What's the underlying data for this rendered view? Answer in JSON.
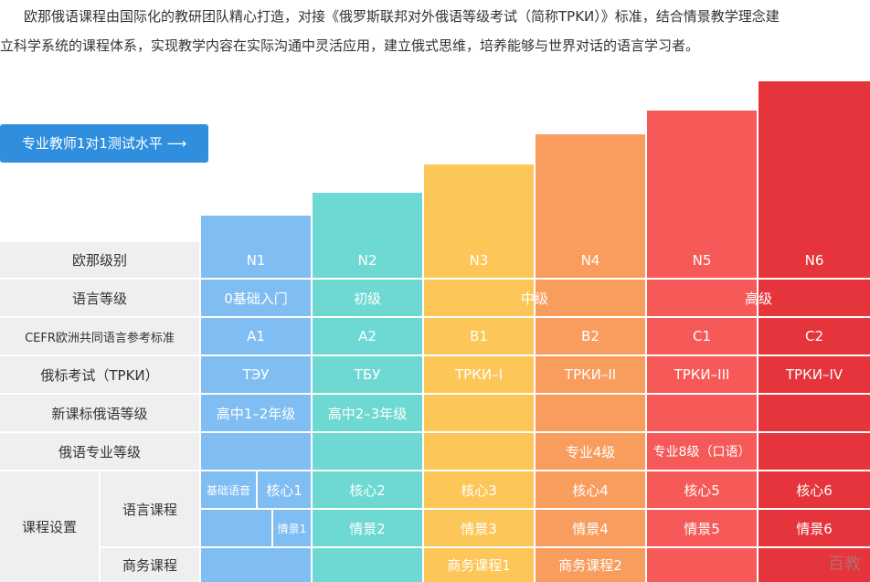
{
  "intro": {
    "line1": "欧那俄语课程由国际化的教研团队精心打造，对接《俄罗斯联邦对外俄语等级考试（简称TPKИ）》标准，结合情景教学理念建",
    "line2": "立科学系统的课程体系，实现教学内容在实际沟通中灵活应用，建立俄式思维，培养能够与世界对话的语言学习者。"
  },
  "button": {
    "label": "专业教师1对1测试水平 ⟶"
  },
  "rows": {
    "level": "欧那级别",
    "grade": "语言等级",
    "cefr": "CEFR欧洲共同语言参考标准",
    "trki": "俄标考试（TPKИ）",
    "newcurr": "新课标俄语等级",
    "major": "俄语专业等级",
    "course": "课程设置",
    "language_course": "语言课程",
    "business_course": "商务课程"
  },
  "levels": [
    "N1",
    "N2",
    "N3",
    "N4",
    "N5",
    "N6"
  ],
  "grades": {
    "n1": "0基础入门",
    "n2": "初级",
    "n34": "中级",
    "n56": "高级"
  },
  "cefr": [
    "A1",
    "A2",
    "B1",
    "B2",
    "C1",
    "C2"
  ],
  "trki": [
    "ТЭУ",
    "ТБУ",
    "ТРКИ–I",
    "ТРКИ–II",
    "ТРКИ–III",
    "ТРКИ–IV"
  ],
  "newcurr": {
    "n1": "高中1–2年级",
    "n2": "高中2–3年级"
  },
  "major": {
    "n4": "专业4级",
    "n5": "专业8级（口语）"
  },
  "core": {
    "basic": "基础语音",
    "c1": "核心1",
    "c2": "核心2",
    "c3": "核心3",
    "c4": "核心4",
    "c5": "核心5",
    "c6": "核心6"
  },
  "scene": {
    "s1": "情景1",
    "s2": "情景2",
    "s3": "情景3",
    "s4": "情景4",
    "s5": "情景5",
    "s6": "情景6"
  },
  "business": {
    "b1": "商务课程1",
    "b2": "商务课程2"
  },
  "watermark": "百教",
  "colors": [
    "#7fbdf3",
    "#6ed8d2",
    "#fdc658",
    "#f99d5e",
    "#f65a58",
    "#e5343b"
  ]
}
